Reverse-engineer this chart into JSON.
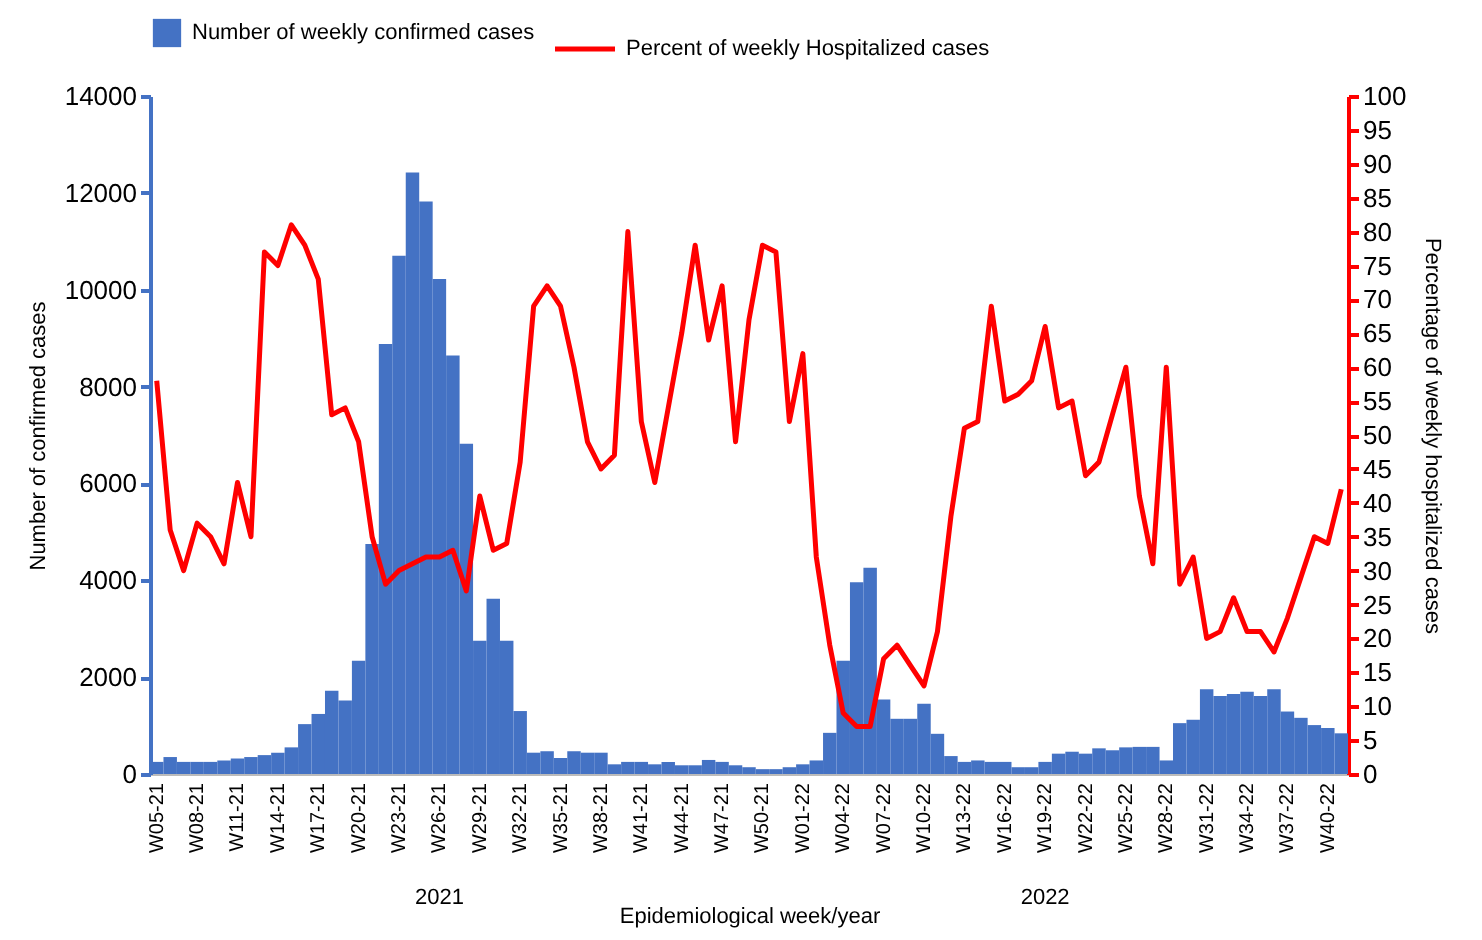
{
  "chart_data": {
    "type": "bar",
    "xlabel": "Epidemiological  week/year",
    "ylabel": "Number of confirmed  cases",
    "y2label": "Percentage  of weekly hospitalized  cases",
    "annotations": [
      "2021",
      "2022"
    ],
    "categories": [
      "W05-21",
      null,
      null,
      "W08-21",
      null,
      null,
      "W11-21",
      null,
      null,
      "W14-21",
      null,
      null,
      "W17-21",
      null,
      null,
      "W20-21",
      null,
      null,
      "W23-21",
      null,
      null,
      "W26-21",
      null,
      null,
      "W29-21",
      null,
      null,
      "W32-21",
      null,
      null,
      "W35-21",
      null,
      null,
      "W38-21",
      null,
      null,
      "W41-21",
      null,
      null,
      "W44-21",
      null,
      null,
      "W47-21",
      null,
      null,
      "W50-21",
      null,
      null,
      "W01-22",
      null,
      null,
      "W04-22",
      null,
      null,
      "W07-22",
      null,
      null,
      "W10-22",
      null,
      null,
      "W13-22",
      null,
      null,
      "W16-22",
      null,
      null,
      "W19-22",
      null,
      null,
      "W22-22",
      null,
      null,
      "W25-22",
      null,
      null,
      "W28-22",
      null,
      null,
      "W31-22",
      null,
      null,
      "W34-22",
      null,
      null,
      "W37-22",
      null,
      null,
      "W40-22",
      null
    ],
    "series": [
      {
        "name": "Number of weekly confirmed cases",
        "axis": "y",
        "color": "#4472c4",
        "values": [
          250,
          350,
          250,
          250,
          250,
          280,
          320,
          350,
          390,
          440,
          550,
          1030,
          1240,
          1720,
          1520,
          2340,
          4750,
          8880,
          10700,
          12420,
          11820,
          10220,
          8640,
          6820,
          2750,
          3620,
          2750,
          1300,
          440,
          470,
          330,
          470,
          440,
          440,
          200,
          250,
          250,
          200,
          250,
          180,
          180,
          290,
          250,
          180,
          140,
          100,
          100,
          140,
          200,
          280,
          850,
          2340,
          3960,
          4260,
          1540,
          1140,
          1140,
          1450,
          830,
          370,
          250,
          280,
          250,
          250,
          140,
          140,
          250,
          420,
          460,
          420,
          530,
          490,
          550,
          560,
          560,
          280,
          1050,
          1120,
          1750,
          1610,
          1650,
          1700,
          1610,
          1750,
          1290,
          1160,
          1010,
          950,
          840
        ]
      },
      {
        "name": "Percent of weekly Hospitalized cases",
        "type": "line",
        "axis": "y2",
        "color": "#ff0000",
        "values": [
          58,
          36,
          30,
          37,
          35,
          31,
          43,
          35,
          77,
          75,
          81,
          78,
          73,
          53,
          54,
          49,
          35,
          28,
          30,
          31,
          32,
          32,
          33,
          27,
          41,
          33,
          34,
          46,
          69,
          72,
          69,
          60,
          49,
          45,
          47,
          80,
          52,
          43,
          54,
          65,
          78,
          64,
          72,
          49,
          67,
          78,
          77,
          52,
          62,
          32,
          19,
          9,
          7,
          7,
          17,
          19,
          16,
          13,
          21,
          38,
          51,
          52,
          69,
          55,
          56,
          58,
          66,
          54,
          55,
          44,
          46,
          53,
          60,
          41,
          31,
          60,
          28,
          32,
          20,
          21,
          26,
          21,
          21,
          18,
          23,
          29,
          35,
          34,
          42
        ]
      }
    ],
    "ylim": [
      0,
      14000
    ],
    "yticks": [
      0,
      2000,
      4000,
      6000,
      8000,
      10000,
      12000,
      14000
    ],
    "y2lim": [
      0,
      100
    ],
    "y2ticks": [
      0,
      5,
      10,
      15,
      20,
      25,
      30,
      35,
      40,
      45,
      50,
      55,
      60,
      65,
      70,
      75,
      80,
      85,
      90,
      95,
      100
    ],
    "legend": "top"
  }
}
